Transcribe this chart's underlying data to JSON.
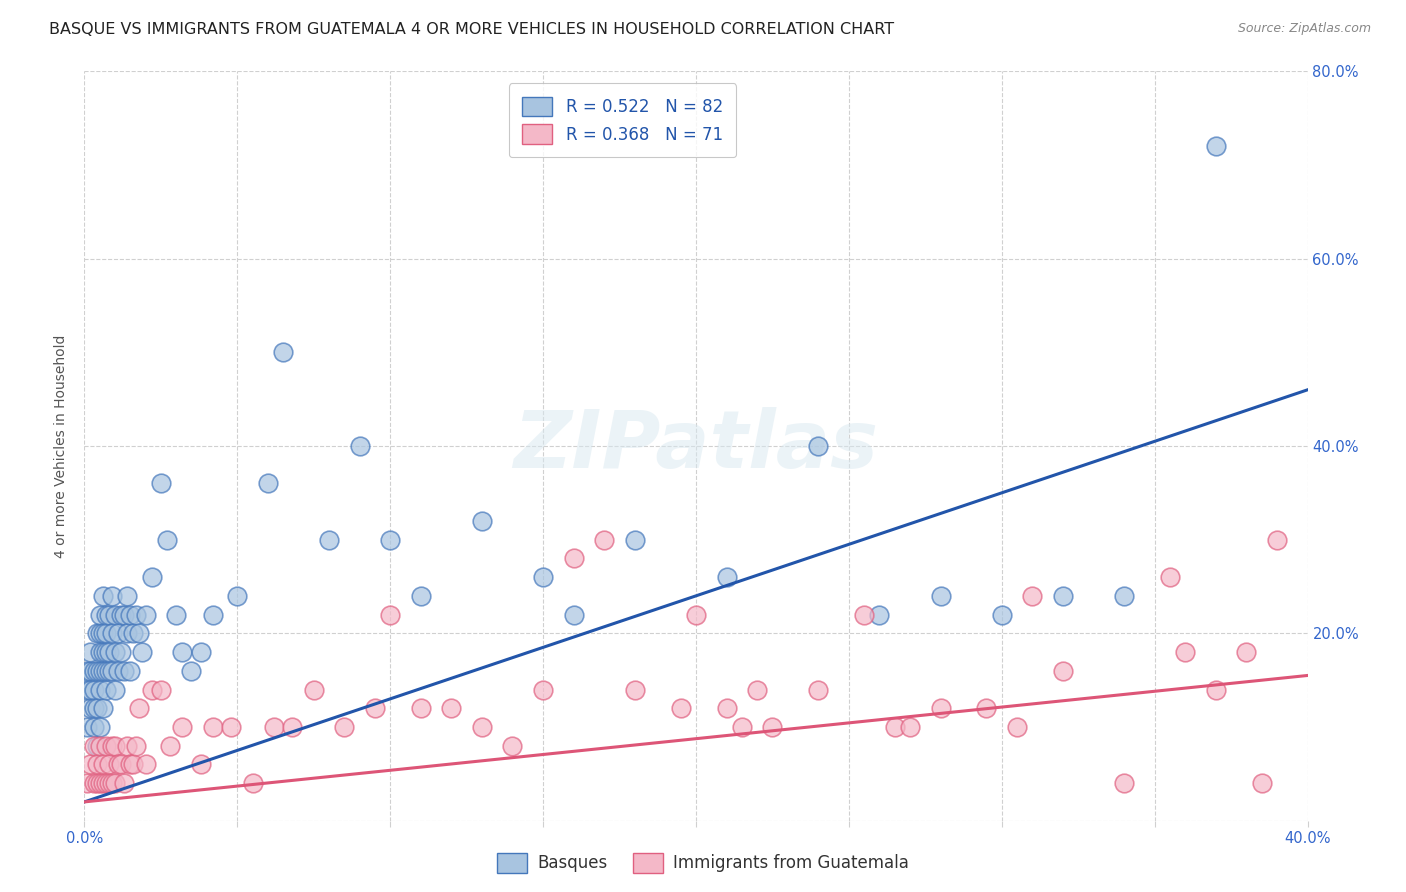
{
  "title": "BASQUE VS IMMIGRANTS FROM GUATEMALA 4 OR MORE VEHICLES IN HOUSEHOLD CORRELATION CHART",
  "source": "Source: ZipAtlas.com",
  "ylabel": "4 or more Vehicles in Household",
  "xlim": [
    0.0,
    0.4
  ],
  "ylim": [
    0.0,
    0.8
  ],
  "xtick_positions": [
    0.0,
    0.05,
    0.1,
    0.15,
    0.2,
    0.25,
    0.3,
    0.35,
    0.4
  ],
  "xtick_labels": [
    "0.0%",
    "",
    "",
    "",
    "",
    "",
    "",
    "",
    "40.0%"
  ],
  "ytick_positions": [
    0.0,
    0.2,
    0.4,
    0.6,
    0.8
  ],
  "ytick_labels": [
    "",
    "20.0%",
    "40.0%",
    "60.0%",
    "80.0%"
  ],
  "blue_color": "#a8c4e0",
  "pink_color": "#f4b8c8",
  "blue_edge_color": "#4477bb",
  "pink_edge_color": "#e06080",
  "blue_line_color": "#2255aa",
  "pink_line_color": "#dd5577",
  "legend_text1": "R = 0.522   N = 82",
  "legend_text2": "R = 0.368   N = 71",
  "series1_label": "Basques",
  "series2_label": "Immigrants from Guatemala",
  "watermark": "ZIPatlas",
  "blue_line_x": [
    0.0,
    0.4
  ],
  "blue_line_y": [
    0.02,
    0.46
  ],
  "pink_line_x": [
    0.0,
    0.4
  ],
  "pink_line_y": [
    0.02,
    0.155
  ],
  "blue_points_x": [
    0.001,
    0.001,
    0.001,
    0.002,
    0.002,
    0.002,
    0.002,
    0.003,
    0.003,
    0.003,
    0.003,
    0.004,
    0.004,
    0.004,
    0.004,
    0.005,
    0.005,
    0.005,
    0.005,
    0.005,
    0.005,
    0.006,
    0.006,
    0.006,
    0.006,
    0.006,
    0.007,
    0.007,
    0.007,
    0.007,
    0.007,
    0.008,
    0.008,
    0.008,
    0.009,
    0.009,
    0.009,
    0.01,
    0.01,
    0.01,
    0.011,
    0.011,
    0.012,
    0.012,
    0.013,
    0.013,
    0.014,
    0.014,
    0.015,
    0.015,
    0.016,
    0.017,
    0.018,
    0.019,
    0.02,
    0.022,
    0.025,
    0.027,
    0.03,
    0.032,
    0.035,
    0.038,
    0.042,
    0.05,
    0.06,
    0.065,
    0.08,
    0.09,
    0.1,
    0.11,
    0.13,
    0.15,
    0.16,
    0.18,
    0.21,
    0.24,
    0.26,
    0.28,
    0.3,
    0.32,
    0.34,
    0.37
  ],
  "blue_points_y": [
    0.14,
    0.1,
    0.16,
    0.12,
    0.16,
    0.14,
    0.18,
    0.1,
    0.14,
    0.12,
    0.16,
    0.08,
    0.12,
    0.16,
    0.2,
    0.1,
    0.14,
    0.16,
    0.18,
    0.2,
    0.22,
    0.12,
    0.16,
    0.18,
    0.2,
    0.24,
    0.14,
    0.16,
    0.18,
    0.2,
    0.22,
    0.16,
    0.18,
    0.22,
    0.16,
    0.2,
    0.24,
    0.14,
    0.18,
    0.22,
    0.16,
    0.2,
    0.18,
    0.22,
    0.16,
    0.22,
    0.2,
    0.24,
    0.16,
    0.22,
    0.2,
    0.22,
    0.2,
    0.18,
    0.22,
    0.26,
    0.36,
    0.3,
    0.22,
    0.18,
    0.16,
    0.18,
    0.22,
    0.24,
    0.36,
    0.5,
    0.3,
    0.4,
    0.3,
    0.24,
    0.32,
    0.26,
    0.22,
    0.3,
    0.26,
    0.4,
    0.22,
    0.24,
    0.22,
    0.24,
    0.24,
    0.72
  ],
  "pink_points_x": [
    0.001,
    0.002,
    0.003,
    0.003,
    0.004,
    0.004,
    0.005,
    0.005,
    0.006,
    0.006,
    0.007,
    0.007,
    0.008,
    0.008,
    0.009,
    0.009,
    0.01,
    0.01,
    0.011,
    0.012,
    0.013,
    0.014,
    0.015,
    0.016,
    0.017,
    0.018,
    0.02,
    0.022,
    0.025,
    0.028,
    0.032,
    0.038,
    0.042,
    0.048,
    0.055,
    0.062,
    0.068,
    0.075,
    0.085,
    0.095,
    0.1,
    0.11,
    0.12,
    0.13,
    0.14,
    0.15,
    0.16,
    0.17,
    0.18,
    0.195,
    0.2,
    0.21,
    0.215,
    0.22,
    0.225,
    0.24,
    0.255,
    0.265,
    0.27,
    0.28,
    0.295,
    0.305,
    0.31,
    0.32,
    0.34,
    0.355,
    0.36,
    0.37,
    0.38,
    0.385,
    0.39
  ],
  "pink_points_y": [
    0.04,
    0.06,
    0.04,
    0.08,
    0.04,
    0.06,
    0.04,
    0.08,
    0.04,
    0.06,
    0.04,
    0.08,
    0.04,
    0.06,
    0.04,
    0.08,
    0.04,
    0.08,
    0.06,
    0.06,
    0.04,
    0.08,
    0.06,
    0.06,
    0.08,
    0.12,
    0.06,
    0.14,
    0.14,
    0.08,
    0.1,
    0.06,
    0.1,
    0.1,
    0.04,
    0.1,
    0.1,
    0.14,
    0.1,
    0.12,
    0.22,
    0.12,
    0.12,
    0.1,
    0.08,
    0.14,
    0.28,
    0.3,
    0.14,
    0.12,
    0.22,
    0.12,
    0.1,
    0.14,
    0.1,
    0.14,
    0.22,
    0.1,
    0.1,
    0.12,
    0.12,
    0.1,
    0.24,
    0.16,
    0.04,
    0.26,
    0.18,
    0.14,
    0.18,
    0.04,
    0.3
  ],
  "title_fontsize": 11.5,
  "axis_label_fontsize": 10,
  "tick_fontsize": 10.5,
  "legend_fontsize": 12,
  "background_color": "#ffffff",
  "grid_color": "#d0d0d0"
}
